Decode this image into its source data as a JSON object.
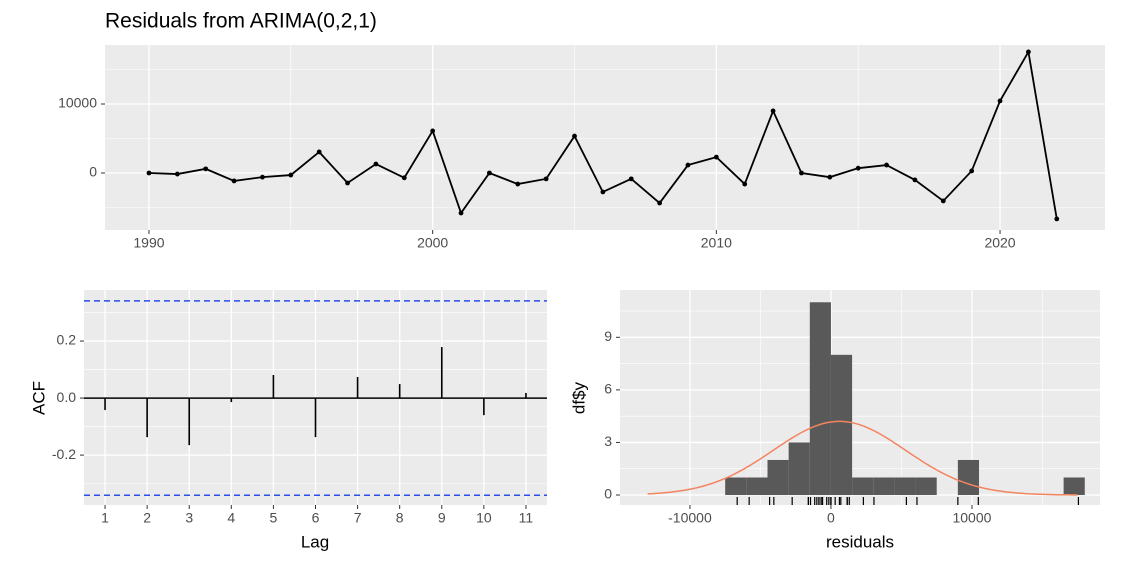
{
  "chart_data": [
    {
      "type": "line",
      "title": "Residuals from ARIMA(0,2,1)",
      "x": [
        1990,
        1991,
        1992,
        1993,
        1994,
        1995,
        1996,
        1997,
        1998,
        1999,
        2000,
        2001,
        2002,
        2003,
        2004,
        2005,
        2006,
        2007,
        2008,
        2009,
        2010,
        2011,
        2012,
        2013,
        2014,
        2015,
        2016,
        2017,
        2018,
        2019,
        2020,
        2021,
        2022
      ],
      "values": [
        0,
        -150,
        600,
        -1150,
        -600,
        -300,
        3050,
        -1450,
        1300,
        -700,
        6100,
        -5800,
        0,
        -1600,
        -850,
        5350,
        -2750,
        -850,
        -4350,
        1150,
        2300,
        -1600,
        9000,
        0,
        -600,
        700,
        1150,
        -1000,
        -4050,
        300,
        10450,
        17550,
        -6650
      ],
      "color": "#000000",
      "xlim": [
        1988.45,
        2023.7
      ],
      "ylim": [
        -8260,
        18550
      ],
      "xticks": [
        1990,
        2000,
        2010,
        2020
      ],
      "yticks": [
        0,
        10000
      ],
      "grid": true
    },
    {
      "type": "acf",
      "xlabel": "Lag",
      "ylabel": "ACF",
      "x": [
        1,
        2,
        3,
        4,
        5,
        6,
        7,
        8,
        9,
        10,
        11
      ],
      "values": [
        -0.042,
        -0.137,
        -0.165,
        -0.014,
        0.081,
        -0.137,
        0.074,
        0.049,
        0.179,
        -0.06,
        0.018
      ],
      "color": "#000000",
      "ci": [
        0.341,
        -0.341
      ],
      "ci_color": "#2b4ee8",
      "xlim": [
        0.5,
        11.5
      ],
      "ylim": [
        -0.375,
        0.379
      ],
      "xticks": [
        1,
        2,
        3,
        4,
        5,
        6,
        7,
        8,
        9,
        10,
        11
      ],
      "yticks": [
        -0.2,
        {
          "value": 0,
          "label": "0.0"
        },
        0.2
      ],
      "grid": true
    },
    {
      "type": "histogram",
      "xlabel": "residuals",
      "ylabel": "df$y",
      "bins": [
        -7500,
        -6000,
        -4500,
        -3000,
        -1500,
        0,
        1500,
        3000,
        4500,
        6000,
        7500,
        9000,
        10500,
        12000,
        13500,
        15000,
        16500,
        18000
      ],
      "counts": [
        1,
        1,
        2,
        3,
        11,
        8,
        1,
        1,
        1,
        1,
        0,
        2,
        0,
        0,
        0,
        0,
        1
      ],
      "color": "#595959",
      "curve": {
        "mean": 600,
        "sd": 4700,
        "from": -13000,
        "to": 17500,
        "color": "#f4845f"
      },
      "xlim": [
        -14960,
        19080
      ],
      "ylim": [
        -0.57,
        11.7
      ],
      "xticks": [
        -10000,
        0,
        10000
      ],
      "yticks": [
        0,
        3,
        6,
        9
      ],
      "grid": true
    }
  ]
}
